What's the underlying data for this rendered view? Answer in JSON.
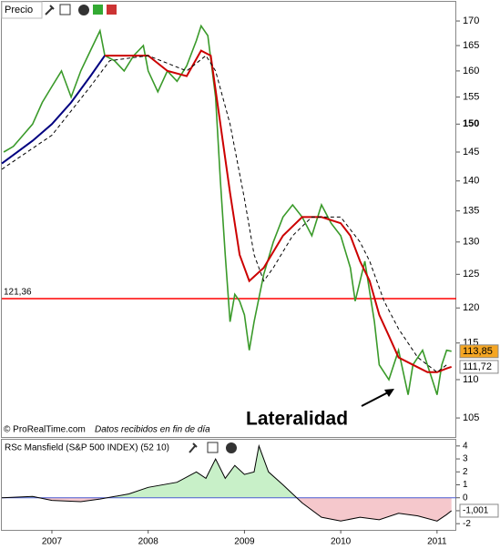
{
  "chart_data": [
    {
      "type": "line",
      "title": "Precio",
      "log": true,
      "xlim": [
        2006.48,
        2011.2
      ],
      "ylim": [
        102.6,
        174
      ],
      "yticks": [
        105,
        110,
        115,
        120,
        125,
        130,
        135,
        140,
        145,
        150,
        155,
        160,
        165,
        170
      ],
      "highlight_tick": 150,
      "series": [
        {
          "color": "#3a9a2a",
          "x": [
            2006.5,
            2006.6,
            2006.7,
            2006.8,
            2006.9,
            2007.0,
            2007.1,
            2007.2,
            2007.3,
            2007.4,
            2007.5,
            2007.55,
            2007.65,
            2007.75,
            2007.85,
            2007.95,
            2008.0,
            2008.1,
            2008.2,
            2008.3,
            2008.4,
            2008.5,
            2008.55,
            2008.62,
            2008.7,
            2008.75,
            2008.8,
            2008.85,
            2008.9,
            2008.95,
            2009.0,
            2009.05,
            2009.1,
            2009.2,
            2009.3,
            2009.4,
            2009.5,
            2009.6,
            2009.7,
            2009.8,
            2009.9,
            2010.0,
            2010.1,
            2010.15,
            2010.25,
            2010.35,
            2010.4,
            2010.5,
            2010.6,
            2010.7,
            2010.75,
            2010.85,
            2010.95,
            2011.0,
            2011.05,
            2011.1,
            2011.15
          ],
          "values": [
            145,
            146,
            148,
            150,
            154,
            157,
            160,
            155,
            160,
            164,
            168,
            163,
            162,
            160,
            163,
            165,
            160,
            156,
            160,
            158,
            161,
            166,
            169,
            167,
            155,
            140,
            128,
            118,
            122,
            121,
            119,
            114,
            118,
            125,
            130,
            134,
            136,
            134,
            131,
            136,
            133,
            131,
            126,
            121,
            127,
            118,
            112,
            110,
            114,
            108,
            112,
            114,
            110,
            108,
            112,
            114,
            113.85
          ]
        },
        {
          "color": "#000080",
          "x": [
            2006.48,
            2006.8,
            2007.0,
            2007.2,
            2007.4,
            2007.55
          ],
          "values": [
            143,
            147,
            150,
            154,
            159,
            163
          ]
        },
        {
          "color": "#cc0000",
          "x": [
            2007.55,
            2007.8,
            2008.0,
            2008.2,
            2008.4,
            2008.55,
            2008.65,
            2008.75,
            2008.85,
            2008.95,
            2009.05,
            2009.2,
            2009.4,
            2009.6,
            2009.8,
            2010.0,
            2010.1,
            2010.2,
            2010.3,
            2010.4,
            2010.5,
            2010.6,
            2010.75,
            2010.9,
            2011.0,
            2011.1,
            2011.15
          ],
          "values": [
            163,
            163,
            163,
            160,
            159,
            164,
            163,
            150,
            138,
            128,
            124,
            126,
            131,
            134,
            134,
            133,
            131,
            127,
            124,
            119,
            116,
            113,
            112,
            111,
            111,
            111.5,
            111.72
          ]
        },
        {
          "color": "#000000",
          "dash": true,
          "x": [
            2006.48,
            2007.0,
            2007.4,
            2007.6,
            2008.0,
            2008.4,
            2008.6,
            2008.7,
            2008.85,
            2009.0,
            2009.1,
            2009.2,
            2009.3,
            2009.5,
            2009.7,
            2010.0,
            2010.2,
            2010.3,
            2010.45,
            2010.6,
            2010.8,
            2011.0,
            2011.1
          ],
          "values": [
            142,
            148,
            157,
            162,
            163,
            160,
            163,
            160,
            150,
            137,
            128,
            124,
            126,
            131,
            134,
            134,
            130,
            127,
            121,
            117,
            113,
            111,
            112
          ]
        }
      ],
      "hline": {
        "value": 121.36,
        "label": "121,36",
        "color": "#ff0000"
      },
      "last_labels": [
        {
          "value": 113.85,
          "label": "113,85",
          "color": "#f5a623"
        },
        {
          "value": 111.72,
          "label": "111,72",
          "color": "#ffffff"
        }
      ],
      "source": "© ProRealTime.com",
      "note": "Datos recibidos en fin de día",
      "annotation": "Lateralidad"
    },
    {
      "type": "area",
      "title": "RSc Mansfield (S&P 500 INDEX) (52 10)",
      "xlim": [
        2006.48,
        2011.2
      ],
      "ylim": [
        -2.48,
        4.48
      ],
      "yticks": [
        4,
        3,
        2,
        1,
        0,
        -1,
        -2
      ],
      "xticks": [
        2007,
        2008,
        2009,
        2010,
        2011
      ],
      "positive_color": "#c8f0c8",
      "negative_color": "#f5c8cc",
      "zero_color": "#4a5ad0",
      "series": [
        {
          "color": "#000000",
          "x": [
            2006.48,
            2006.8,
            2007.0,
            2007.3,
            2007.5,
            2007.8,
            2008.0,
            2008.3,
            2008.5,
            2008.6,
            2008.7,
            2008.8,
            2008.9,
            2009.0,
            2009.1,
            2009.15,
            2009.25,
            2009.4,
            2009.5,
            2009.6,
            2009.8,
            2010.0,
            2010.2,
            2010.4,
            2010.6,
            2010.8,
            2011.0,
            2011.1,
            2011.15
          ],
          "values": [
            0,
            0.1,
            -0.2,
            -0.3,
            -0.1,
            0.3,
            0.8,
            1.2,
            2.0,
            1.5,
            3.0,
            1.5,
            2.5,
            1.8,
            2.0,
            4.0,
            2.0,
            1.0,
            0.3,
            -0.4,
            -1.5,
            -1.8,
            -1.5,
            -1.7,
            -1.2,
            -1.4,
            -1.8,
            -1.3,
            -1.001
          ]
        }
      ],
      "last_label": {
        "value": -1.001,
        "label": "-1,001"
      }
    }
  ]
}
